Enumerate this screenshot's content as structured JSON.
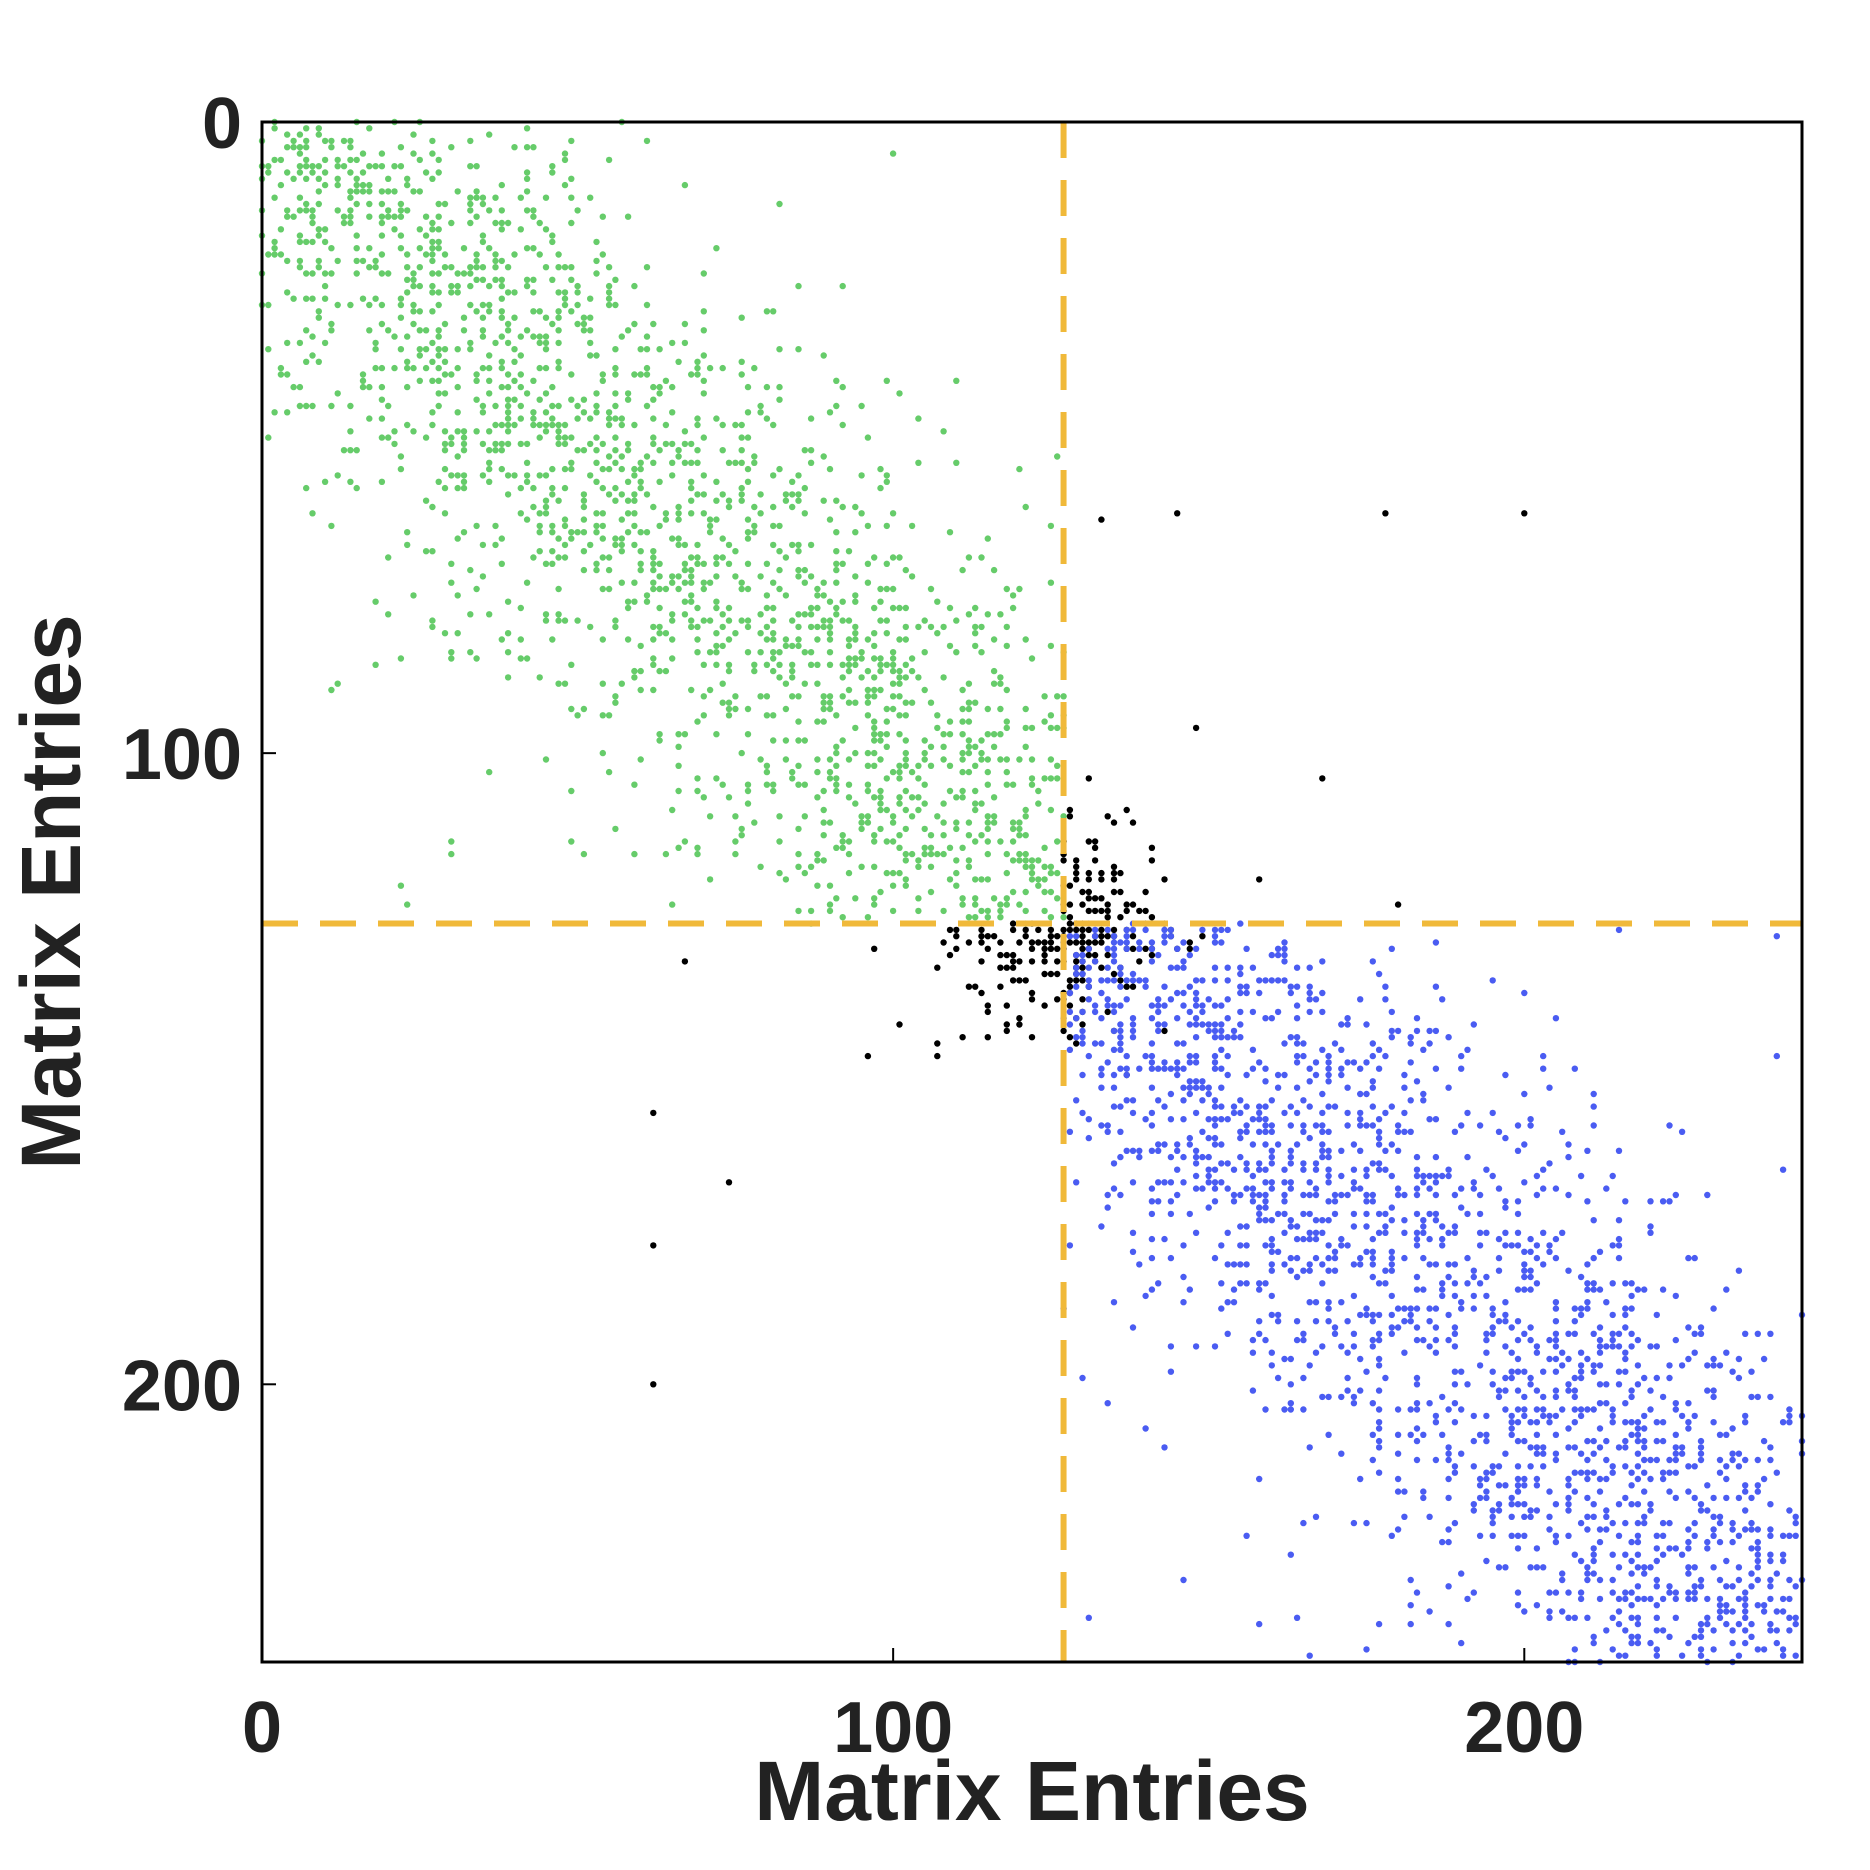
{
  "chart_data": {
    "type": "scatter",
    "title": "",
    "xlabel": "Matrix Entries",
    "ylabel": "Matrix Entries",
    "xlim": [
      0,
      244
    ],
    "ylim": [
      0,
      244
    ],
    "y_inverted": true,
    "x_ticks": [
      0,
      100,
      200
    ],
    "y_ticks": [
      0,
      100,
      200
    ],
    "grid": false,
    "legend": "none",
    "partition": {
      "x": 127,
      "y": 127,
      "color": "#F0B93A",
      "style": "dashed"
    },
    "series": [
      {
        "color": "#66CC6A",
        "region": "top-left block",
        "seed": 11,
        "count": 2300,
        "center_line": [
          0,
          127
        ],
        "spread": 11,
        "tail": 0.06
      },
      {
        "color": "#000000",
        "region": "coupling blocks",
        "seed": 23,
        "count": 260,
        "center_point": [
          127,
          127
        ],
        "spread": 8,
        "tail": 0.05,
        "outliers": [
          [
            133,
            63
          ],
          [
            145,
            62
          ],
          [
            178,
            62
          ],
          [
            200,
            62
          ],
          [
            62,
            157
          ],
          [
            62,
            200
          ],
          [
            62,
            178
          ],
          [
            96,
            148
          ],
          [
            148,
            96
          ],
          [
            67,
            133
          ]
        ]
      },
      {
        "color": "#4A5CF2",
        "region": "bottom-right block",
        "seed": 37,
        "count": 2300,
        "center_line": [
          127,
          244
        ],
        "spread": 11,
        "tail": 0.06
      }
    ]
  }
}
